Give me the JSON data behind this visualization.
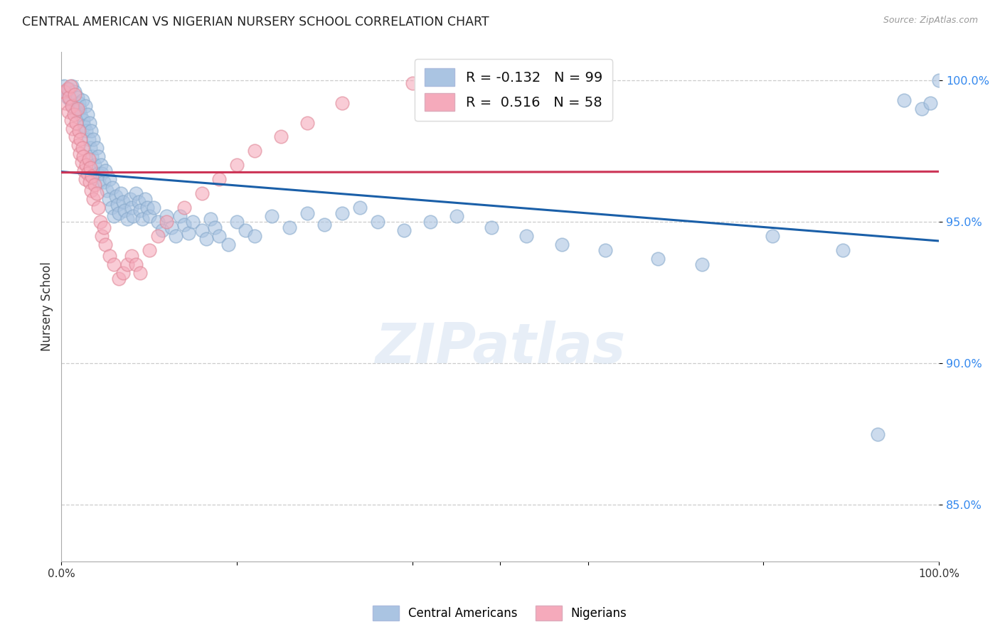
{
  "title": "CENTRAL AMERICAN VS NIGERIAN NURSERY SCHOOL CORRELATION CHART",
  "source": "Source: ZipAtlas.com",
  "ylabel": "Nursery School",
  "xlim": [
    0,
    1.0
  ],
  "ylim": [
    0.83,
    1.01
  ],
  "yticks": [
    0.85,
    0.9,
    0.95,
    1.0
  ],
  "ytick_labels": [
    "85.0%",
    "90.0%",
    "95.0%",
    "100.0%"
  ],
  "xticks": [
    0.0,
    0.2,
    0.4,
    0.5,
    0.6,
    0.8,
    1.0
  ],
  "xtick_labels": [
    "0.0%",
    "",
    "",
    "",
    "",
    "",
    "100.0%"
  ],
  "blue_R": -0.132,
  "blue_N": 99,
  "pink_R": 0.516,
  "pink_N": 58,
  "blue_color": "#aac4e2",
  "pink_color": "#f5aabb",
  "blue_edge_color": "#88aacc",
  "pink_edge_color": "#e08898",
  "blue_line_color": "#1a5fa8",
  "pink_line_color": "#cc3355",
  "legend_blue_label": "Central Americans",
  "legend_pink_label": "Nigerians",
  "watermark": "ZIPatlas",
  "blue_x": [
    0.003,
    0.005,
    0.007,
    0.009,
    0.01,
    0.012,
    0.013,
    0.015,
    0.016,
    0.018,
    0.02,
    0.021,
    0.022,
    0.024,
    0.025,
    0.026,
    0.027,
    0.028,
    0.03,
    0.031,
    0.032,
    0.033,
    0.034,
    0.035,
    0.036,
    0.038,
    0.04,
    0.041,
    0.042,
    0.043,
    0.045,
    0.046,
    0.048,
    0.05,
    0.052,
    0.054,
    0.055,
    0.057,
    0.058,
    0.06,
    0.062,
    0.064,
    0.065,
    0.068,
    0.07,
    0.072,
    0.075,
    0.078,
    0.08,
    0.082,
    0.085,
    0.088,
    0.09,
    0.092,
    0.095,
    0.098,
    0.1,
    0.105,
    0.11,
    0.115,
    0.12,
    0.125,
    0.13,
    0.135,
    0.14,
    0.145,
    0.15,
    0.16,
    0.165,
    0.17,
    0.175,
    0.18,
    0.19,
    0.2,
    0.21,
    0.22,
    0.24,
    0.26,
    0.28,
    0.3,
    0.32,
    0.34,
    0.36,
    0.39,
    0.42,
    0.45,
    0.49,
    0.53,
    0.57,
    0.62,
    0.68,
    0.73,
    0.81,
    0.89,
    0.93,
    0.96,
    0.98,
    0.99,
    1.0
  ],
  "blue_y": [
    0.998,
    0.996,
    0.994,
    0.997,
    0.993,
    0.998,
    0.991,
    0.996,
    0.989,
    0.994,
    0.992,
    0.99,
    0.988,
    0.993,
    0.986,
    0.984,
    0.991,
    0.982,
    0.988,
    0.979,
    0.985,
    0.976,
    0.982,
    0.973,
    0.979,
    0.97,
    0.976,
    0.967,
    0.973,
    0.964,
    0.97,
    0.967,
    0.964,
    0.968,
    0.961,
    0.958,
    0.965,
    0.955,
    0.962,
    0.952,
    0.959,
    0.956,
    0.953,
    0.96,
    0.957,
    0.954,
    0.951,
    0.958,
    0.955,
    0.952,
    0.96,
    0.957,
    0.954,
    0.951,
    0.958,
    0.955,
    0.952,
    0.955,
    0.95,
    0.947,
    0.952,
    0.948,
    0.945,
    0.952,
    0.949,
    0.946,
    0.95,
    0.947,
    0.944,
    0.951,
    0.948,
    0.945,
    0.942,
    0.95,
    0.947,
    0.945,
    0.952,
    0.948,
    0.953,
    0.949,
    0.953,
    0.955,
    0.95,
    0.947,
    0.95,
    0.952,
    0.948,
    0.945,
    0.942,
    0.94,
    0.937,
    0.935,
    0.945,
    0.94,
    0.875,
    0.993,
    0.99,
    0.992,
    1.0
  ],
  "pink_x": [
    0.003,
    0.005,
    0.007,
    0.008,
    0.009,
    0.01,
    0.011,
    0.012,
    0.013,
    0.014,
    0.015,
    0.016,
    0.017,
    0.018,
    0.019,
    0.02,
    0.021,
    0.022,
    0.023,
    0.024,
    0.025,
    0.026,
    0.027,
    0.028,
    0.03,
    0.031,
    0.032,
    0.033,
    0.034,
    0.035,
    0.036,
    0.038,
    0.04,
    0.042,
    0.044,
    0.046,
    0.048,
    0.05,
    0.055,
    0.06,
    0.065,
    0.07,
    0.075,
    0.08,
    0.085,
    0.09,
    0.1,
    0.11,
    0.12,
    0.14,
    0.16,
    0.18,
    0.2,
    0.22,
    0.25,
    0.28,
    0.32,
    0.4
  ],
  "pink_y": [
    0.996,
    0.992,
    0.997,
    0.989,
    0.994,
    0.998,
    0.986,
    0.991,
    0.983,
    0.988,
    0.995,
    0.98,
    0.985,
    0.99,
    0.977,
    0.982,
    0.974,
    0.979,
    0.971,
    0.976,
    0.973,
    0.968,
    0.965,
    0.97,
    0.967,
    0.972,
    0.964,
    0.969,
    0.961,
    0.966,
    0.958,
    0.963,
    0.96,
    0.955,
    0.95,
    0.945,
    0.948,
    0.942,
    0.938,
    0.935,
    0.93,
    0.932,
    0.935,
    0.938,
    0.935,
    0.932,
    0.94,
    0.945,
    0.95,
    0.955,
    0.96,
    0.965,
    0.97,
    0.975,
    0.98,
    0.985,
    0.992,
    0.999
  ]
}
